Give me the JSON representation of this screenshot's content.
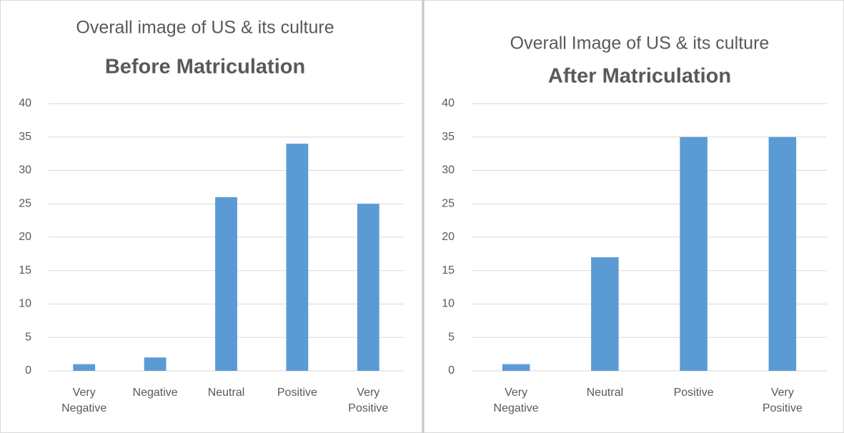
{
  "chart_data": [
    {
      "type": "bar",
      "title": "Overall image of US & its culture",
      "subtitle": "Before Matriculation",
      "categories": [
        "Very Negative",
        "Negative",
        "Neutral",
        "Positive",
        "Very Positive"
      ],
      "values": [
        1,
        2,
        26,
        34,
        25
      ],
      "color": "#5b9bd5",
      "ylim": [
        0,
        40
      ],
      "yticks": [
        0,
        5,
        10,
        15,
        20,
        25,
        30,
        35,
        40
      ],
      "grid": true
    },
    {
      "type": "bar",
      "title": "Overall Image of US & its culture",
      "subtitle": "After Matriculation",
      "categories": [
        "Very Negative",
        "Neutral",
        "Positive",
        "Very Positive"
      ],
      "values": [
        1,
        17,
        35,
        35
      ],
      "color": "#5b9bd5",
      "ylim": [
        0,
        40
      ],
      "yticks": [
        0,
        5,
        10,
        15,
        20,
        25,
        30,
        35,
        40
      ],
      "grid": true
    }
  ]
}
